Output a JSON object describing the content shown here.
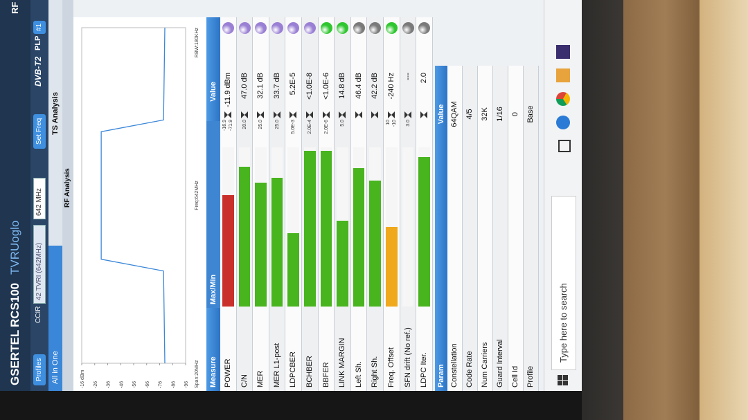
{
  "header": {
    "brand": "GSERTEL",
    "model": "RCS100",
    "user": "TVRUoglo",
    "corner": "RF"
  },
  "toolbar": {
    "profiles": "Profiles",
    "standard": "CCIR",
    "channel": "42 TVRI (642MHz)",
    "frequency": "642 MHz",
    "set_freq": "Set Freq",
    "logo": "DVB-T2",
    "plp_label": "PLP",
    "plp": "#1"
  },
  "tabs": [
    "All in One",
    "TS Analysis"
  ],
  "subtab": "RF Analysis",
  "spectrum": {
    "type": "line",
    "x": [
      632,
      637.5,
      638.2,
      645.8,
      646.5,
      652
    ],
    "values": [
      -80,
      -79,
      -31,
      -31,
      -79,
      -80
    ],
    "xlim": [
      632,
      652
    ],
    "ylim": [
      -96,
      -16
    ],
    "yticks": [
      {
        "value": -16,
        "label": "-16 dBm"
      },
      -26,
      -36,
      -46,
      -56,
      -66,
      -76,
      -86,
      -96
    ],
    "color": "#3a86d8",
    "span": "Span:20MHz",
    "center": "Freq:642MHz",
    "rbw": "RBW:180KHz"
  },
  "measure": {
    "columns": [
      "Measure",
      "Max/Min",
      "Value"
    ],
    "rows": [
      {
        "name": "POWER",
        "limits": [
          "-16.9",
          "-71.9"
        ],
        "value": "-11.9 dBm",
        "level": 70,
        "color": "#c9302c",
        "status": "#9a80d4"
      },
      {
        "name": "C/N",
        "limits": [
          "20.0"
        ],
        "value": "47.0 dB",
        "level": 88,
        "color": "#48b41e",
        "status": "#9a80d4"
      },
      {
        "name": "MER",
        "limits": [
          "25.0"
        ],
        "value": "32.1 dB",
        "level": 78,
        "color": "#48b41e",
        "status": "#9a80d4"
      },
      {
        "name": "MER L1-post",
        "limits": [
          "25.0"
        ],
        "value": "33.7 dB",
        "level": 81,
        "color": "#48b41e",
        "status": "#9a80d4"
      },
      {
        "name": "LDPCBER",
        "limits": [
          "5.0E-3"
        ],
        "value": "5.2E-5",
        "level": 46,
        "color": "#48b41e",
        "status": "#9a80d4"
      },
      {
        "name": "BCHBER",
        "limits": [
          "2.0E-4"
        ],
        "value": "<1.0E-8",
        "level": 98,
        "color": "#48b41e",
        "status": "#9a80d4"
      },
      {
        "name": "BBFER",
        "limits": [
          "2.0E-6"
        ],
        "value": "<1.0E-6",
        "level": 98,
        "color": "#48b41e",
        "status": "#2fc62f"
      },
      {
        "name": "LINK MARGIN",
        "limits": [
          "5.0"
        ],
        "value": "14.8 dB",
        "level": 54,
        "color": "#48b41e",
        "status": "#2fc62f"
      },
      {
        "name": "Left Sh.",
        "limits": [],
        "value": "46.4 dB",
        "level": 87,
        "color": "#48b41e",
        "status": "#7a7a7a"
      },
      {
        "name": "Right Sh.",
        "limits": [],
        "value": "42.2 dB",
        "level": 79,
        "color": "#48b41e",
        "status": "#7a7a7a"
      },
      {
        "name": "Freq. Offset",
        "limits": [
          "10",
          "-10"
        ],
        "value": "-240 Hz",
        "level": 50,
        "color": "#f0a81c",
        "status": "#2fc62f"
      },
      {
        "name": "SFN drift (No ref.)",
        "limits": [
          "3.0"
        ],
        "value": "---",
        "status": "#7a7a7a"
      },
      {
        "name": "LDPC Iter.",
        "limits": [],
        "value": "2.0",
        "level": 94,
        "color": "#48b41e",
        "status": "#7a7a7a"
      }
    ]
  },
  "params": {
    "columns": [
      "Param",
      "Value"
    ],
    "rows": [
      [
        "Constellation",
        "64QAM"
      ],
      [
        "Code Rate",
        "4/5"
      ],
      [
        "Num Carriers",
        "32K"
      ],
      [
        "Guard Interval",
        "1/16"
      ],
      [
        "Cell Id",
        "0"
      ],
      [
        "Profile",
        "Base"
      ]
    ]
  },
  "taskbar": {
    "search": "Type here to search"
  }
}
